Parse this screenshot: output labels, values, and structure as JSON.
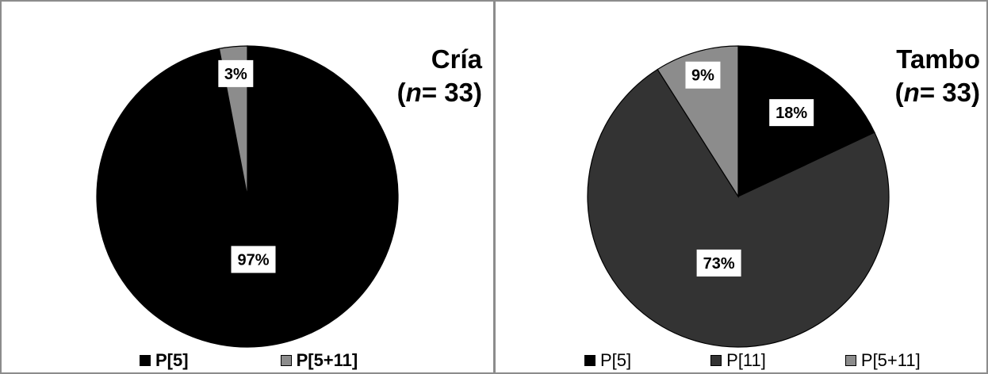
{
  "chart_data": [
    {
      "type": "pie",
      "title": "Cría",
      "n_prefix": "n",
      "n_suffix": "= 33",
      "paren_open": "(",
      "paren_close": ")",
      "categories": [
        "P[5]",
        "P[5+11]"
      ],
      "values": [
        97,
        3
      ],
      "labels": [
        "97%",
        "3%"
      ],
      "colors": [
        "#000000",
        "#8c8c8c"
      ],
      "legend_position": "bottom",
      "legend_bold": true
    },
    {
      "type": "pie",
      "title": "Tambo",
      "n_prefix": "n",
      "n_suffix": "= 33",
      "paren_open": "(",
      "paren_close": ")",
      "categories": [
        "P[5]",
        "P[11]",
        "P[5+11]"
      ],
      "values": [
        18,
        73,
        9
      ],
      "labels": [
        "18%",
        "73%",
        "9%"
      ],
      "colors": [
        "#000000",
        "#333333",
        "#8c8c8c"
      ],
      "legend_position": "bottom",
      "legend_bold": false
    }
  ]
}
